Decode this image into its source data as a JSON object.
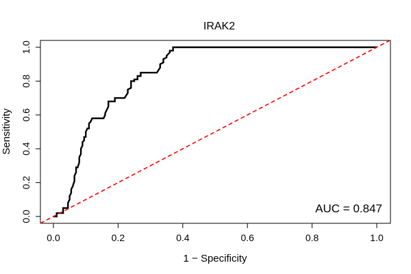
{
  "chart_data": {
    "type": "line",
    "title": "IRAK2",
    "xlabel": "1 − Specificity",
    "ylabel": "Sensitivity",
    "xlim": [
      -0.04,
      1.04
    ],
    "ylim": [
      -0.04,
      1.04
    ],
    "x_ticks": [
      0.0,
      0.2,
      0.4,
      0.6,
      0.8,
      1.0
    ],
    "x_tick_labels": [
      "0.0",
      "0.2",
      "0.4",
      "0.6",
      "0.8",
      "1.0"
    ],
    "y_ticks": [
      0.0,
      0.2,
      0.4,
      0.6,
      0.8,
      1.0
    ],
    "y_tick_labels": [
      "0.0",
      "0.2",
      "0.4",
      "0.6",
      "0.8",
      "1.0"
    ],
    "grid": false,
    "annotation": "AUC = 0.847",
    "series": [
      {
        "color": "#000000",
        "style": "solid",
        "x": [
          0.0,
          0.01,
          0.01,
          0.02,
          0.025,
          0.03,
          0.03,
          0.04,
          0.045,
          0.045,
          0.05,
          0.05,
          0.055,
          0.055,
          0.06,
          0.065,
          0.065,
          0.07,
          0.07,
          0.075,
          0.08,
          0.08,
          0.085,
          0.085,
          0.09,
          0.09,
          0.095,
          0.095,
          0.1,
          0.1,
          0.105,
          0.11,
          0.11,
          0.115,
          0.12,
          0.12,
          0.155,
          0.16,
          0.16,
          0.17,
          0.17,
          0.19,
          0.19,
          0.22,
          0.23,
          0.23,
          0.24,
          0.24,
          0.25,
          0.25,
          0.26,
          0.26,
          0.27,
          0.27,
          0.28,
          0.28,
          0.29,
          0.29,
          0.32,
          0.33,
          0.33,
          0.34,
          0.34,
          0.35,
          0.35,
          0.36,
          0.36,
          0.37,
          0.37,
          1.0
        ],
        "y": [
          0.0,
          0.0,
          0.02,
          0.02,
          0.02,
          0.02,
          0.05,
          0.05,
          0.05,
          0.08,
          0.1,
          0.12,
          0.14,
          0.16,
          0.18,
          0.21,
          0.24,
          0.26,
          0.29,
          0.29,
          0.32,
          0.35,
          0.37,
          0.4,
          0.42,
          0.44,
          0.45,
          0.47,
          0.47,
          0.5,
          0.52,
          0.52,
          0.55,
          0.56,
          0.58,
          0.58,
          0.58,
          0.6,
          0.61,
          0.65,
          0.68,
          0.68,
          0.7,
          0.7,
          0.73,
          0.75,
          0.76,
          0.8,
          0.8,
          0.81,
          0.81,
          0.83,
          0.83,
          0.85,
          0.85,
          0.85,
          0.85,
          0.85,
          0.85,
          0.88,
          0.9,
          0.91,
          0.93,
          0.94,
          0.95,
          0.97,
          0.98,
          0.98,
          1.0,
          1.0
        ]
      },
      {
        "color": "#ff0000",
        "style": "dashed",
        "x": [
          -0.04,
          1.04
        ],
        "y": [
          -0.04,
          1.04
        ]
      }
    ]
  }
}
